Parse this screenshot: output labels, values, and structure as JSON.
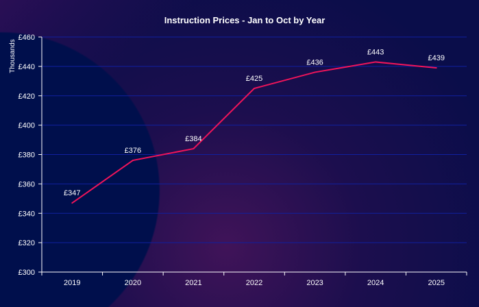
{
  "chart_data": {
    "type": "line",
    "title": "Instruction Prices - Jan to Oct by Year",
    "ylabel": "Thousands",
    "xlabel": "",
    "categories": [
      "2019",
      "2020",
      "2021",
      "2022",
      "2023",
      "2024",
      "2025"
    ],
    "values": [
      347,
      376,
      384,
      425,
      436,
      443,
      439
    ],
    "data_labels": [
      "£347",
      "£376",
      "£384",
      "£425",
      "£436",
      "£443",
      "£439"
    ],
    "ylim": [
      300,
      460
    ],
    "yticks": [
      "£300",
      "£320",
      "£340",
      "£360",
      "£380",
      "£400",
      "£420",
      "£440",
      "£460"
    ],
    "grid": true,
    "colors": {
      "line": "#f0145a",
      "grid": "#1020a0",
      "background": "#000f4c"
    }
  }
}
